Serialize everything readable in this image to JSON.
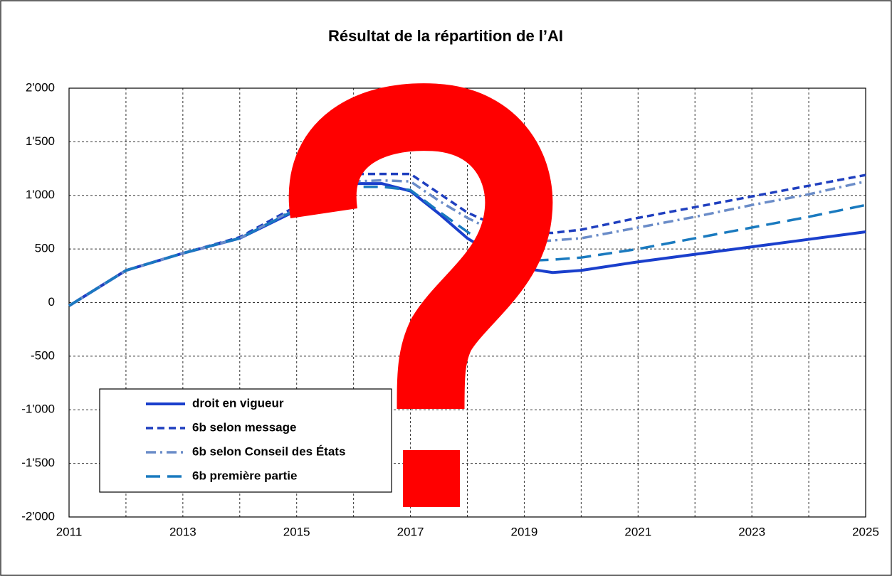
{
  "chart_data": {
    "type": "line",
    "title": "Résultat de la répartition de l’AI",
    "x": [
      2011,
      2012,
      2013,
      2014,
      2015,
      2016,
      2016.5,
      2017,
      2017.5,
      2018,
      2018.5,
      2019,
      2019.5,
      2020,
      2021,
      2022,
      2023,
      2024,
      2025
    ],
    "series": [
      {
        "name": "droit en vigueur",
        "color": "#1a3fcc",
        "values": [
          -30,
          300,
          460,
          600,
          860,
          1110,
          1110,
          1040,
          830,
          600,
          440,
          320,
          280,
          300,
          380,
          450,
          520,
          590,
          660
        ]
      },
      {
        "name": "6b selon message",
        "color": "#1f3fbf",
        "values": [
          -30,
          300,
          460,
          610,
          900,
          1200,
          1200,
          1200,
          1020,
          840,
          720,
          650,
          650,
          680,
          790,
          890,
          990,
          1090,
          1190
        ]
      },
      {
        "name": "6b selon Conseil des États",
        "color": "#6a8cc8",
        "values": [
          -30,
          300,
          460,
          600,
          880,
          1130,
          1140,
          1130,
          950,
          790,
          660,
          560,
          580,
          600,
          700,
          800,
          910,
          1010,
          1130
        ]
      },
      {
        "name": "6b première partie",
        "color": "#1a7abf",
        "values": [
          -30,
          300,
          460,
          600,
          870,
          1080,
          1080,
          1050,
          850,
          660,
          480,
          390,
          400,
          420,
          500,
          600,
          700,
          800,
          910
        ]
      }
    ],
    "xlim": [
      2011,
      2025
    ],
    "xticks": [
      2011,
      2013,
      2015,
      2017,
      2019,
      2021,
      2023,
      2025
    ],
    "x_minor_ticks": [
      2012,
      2014,
      2016,
      2018,
      2020,
      2022,
      2024
    ],
    "ylim": [
      -2000,
      2000
    ],
    "yticks": [
      {
        "value": -2000,
        "label": "-2'000"
      },
      {
        "value": -1500,
        "label": "-1'500"
      },
      {
        "value": -1000,
        "label": "-1'000"
      },
      -500,
      0,
      500,
      {
        "value": 1000,
        "label": "1'000"
      },
      {
        "value": 1500,
        "label": "1'500"
      },
      {
        "value": 2000,
        "label": "2'000"
      }
    ],
    "grid": true,
    "legend": "lower left"
  }
}
